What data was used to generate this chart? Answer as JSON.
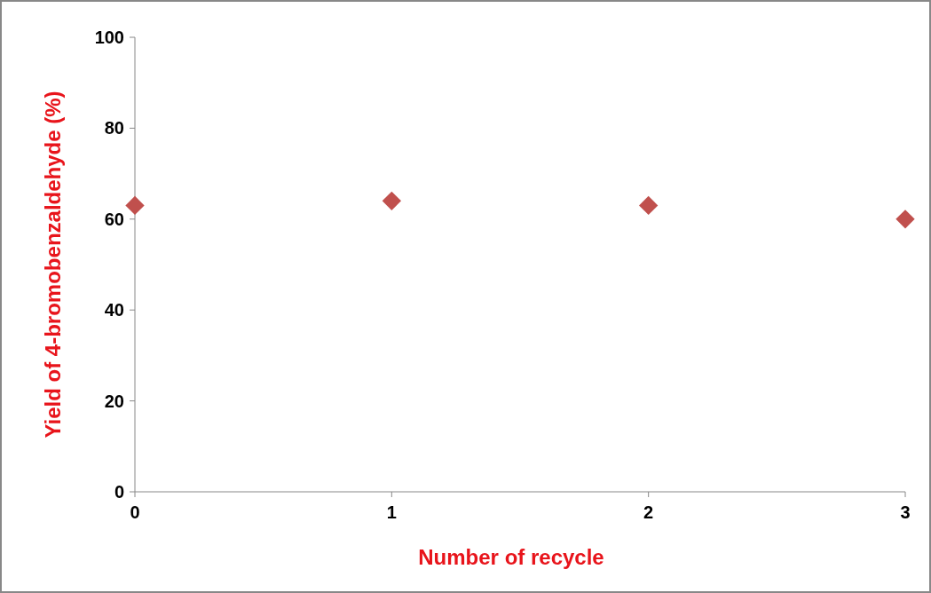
{
  "chart_data": {
    "type": "scatter",
    "xlabel": "Number of recycle",
    "ylabel": "Yield of 4-bromobenzaldehyde (%)",
    "x": [
      0,
      1,
      2,
      3
    ],
    "series": [
      {
        "color": "#c0504d",
        "values": [
          63,
          64,
          63,
          60
        ]
      }
    ],
    "xlim": [
      0,
      3
    ],
    "xticks": [
      0,
      1,
      2,
      3
    ],
    "ylim": [
      0,
      100
    ],
    "yticks": [
      0,
      20,
      40,
      60,
      80,
      100
    ],
    "grid": false,
    "marker": "diamond"
  }
}
